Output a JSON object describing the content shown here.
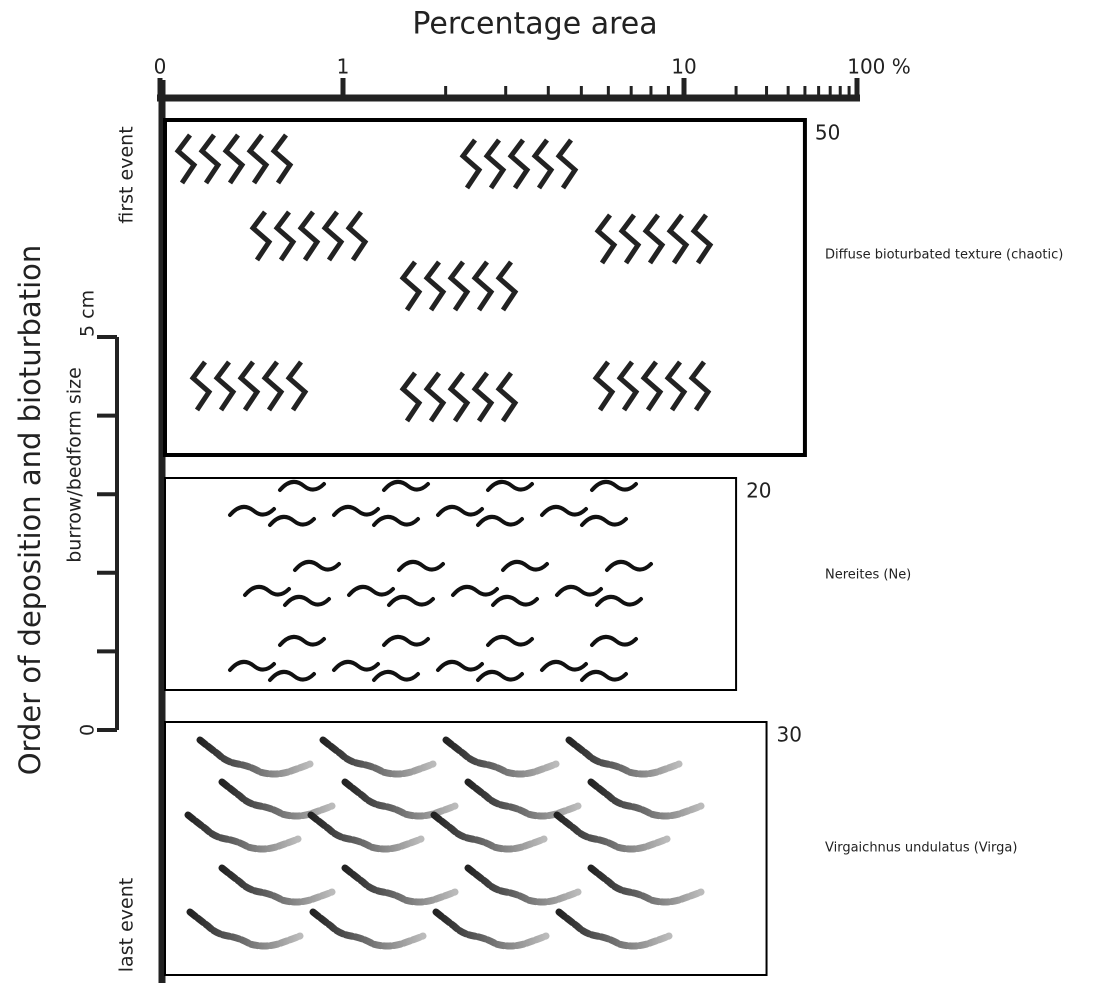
{
  "chart_data": {
    "type": "bar",
    "orientation": "horizontal",
    "title": "Percentage area",
    "y_label": "Order of deposition and bioturbation",
    "annotations": [
      "first event",
      "last event"
    ],
    "categories": [
      "Diffuse bioturbated texture (chaotic)",
      "Nereites (Ne)",
      "Virgaichnus undulatus (Virga)"
    ],
    "values": [
      50,
      20,
      30
    ],
    "color": "#000000",
    "xscale": "log",
    "xlim": [
      0,
      100
    ],
    "xticks": [
      0,
      1,
      10,
      {
        "value": 100,
        "label": "100 %"
      }
    ],
    "xminor": [
      2,
      3,
      4,
      5,
      6,
      7,
      8,
      9,
      20,
      30,
      40,
      50,
      60,
      70,
      80,
      90
    ],
    "size_scale": {
      "label": "burrow/bedform size",
      "ylim": [
        0,
        5
      ],
      "yticks": [
        0,
        {
          "value": 5,
          "label": "5 cm"
        }
      ],
      "yminor": [
        1,
        2,
        3,
        4
      ]
    }
  }
}
